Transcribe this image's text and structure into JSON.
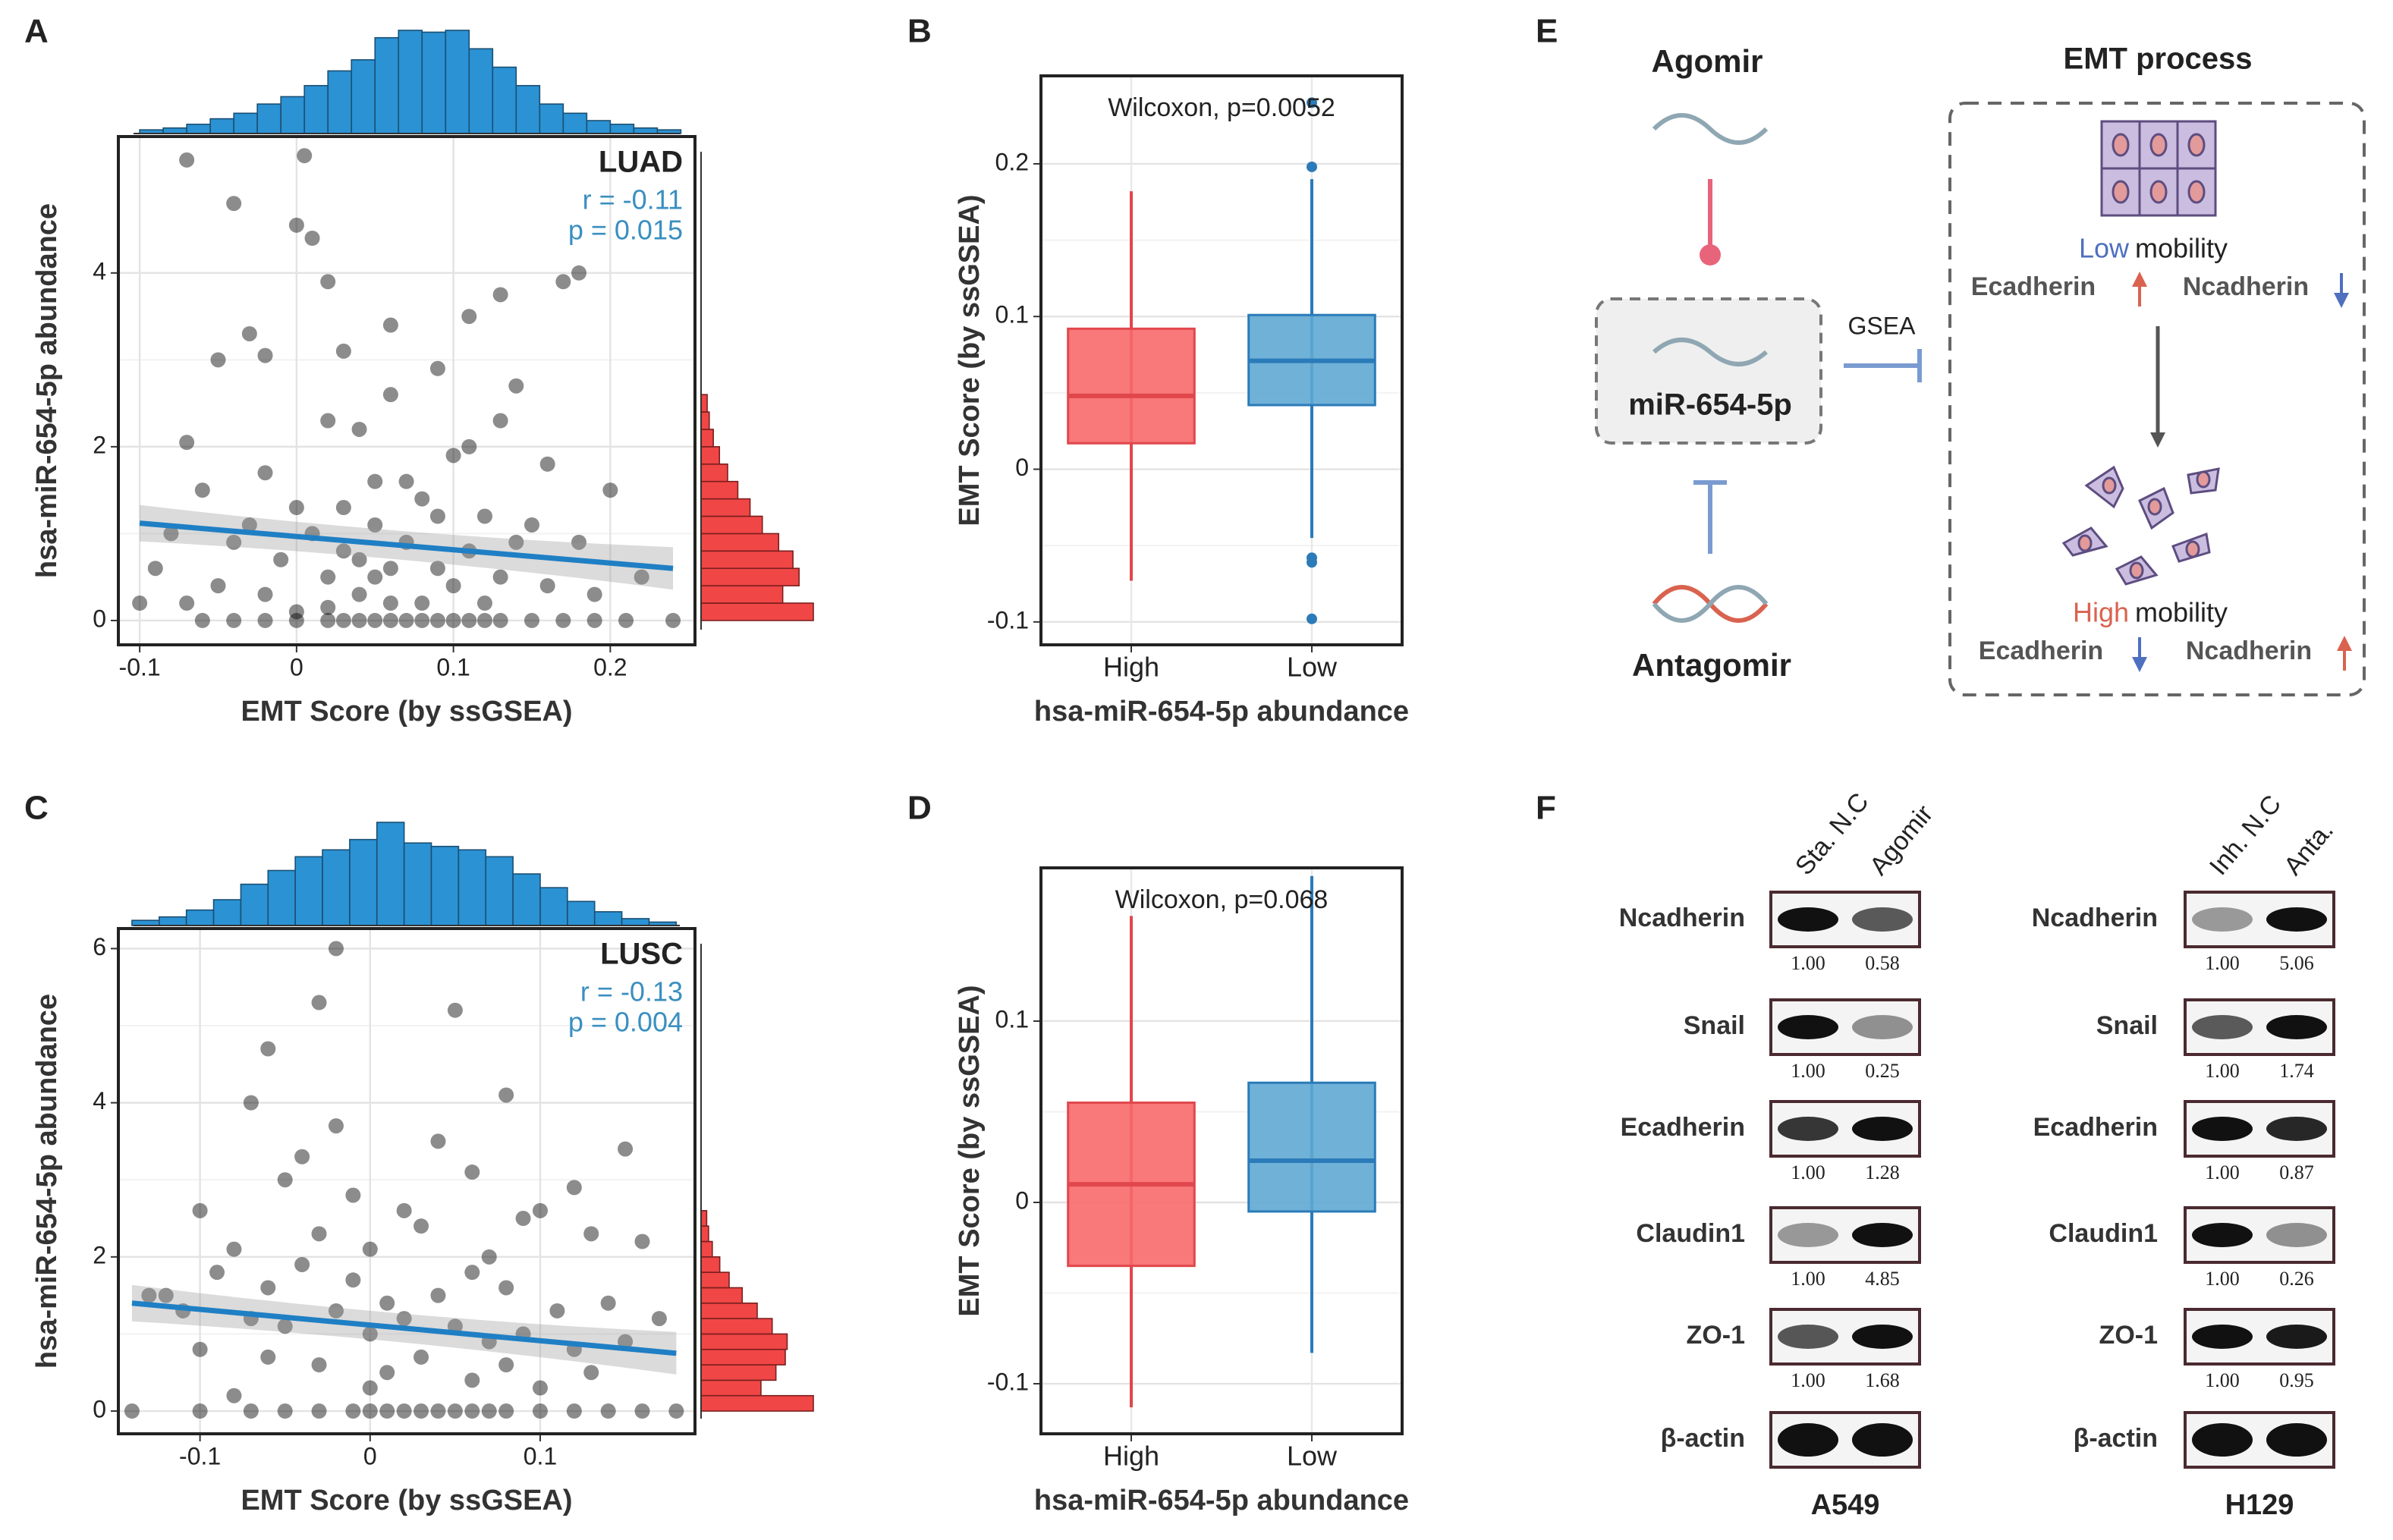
{
  "chart_data": [
    {
      "type": "scatter",
      "panel": "A",
      "xlabel": "EMT Score (by ssGSEA)",
      "ylabel": "hsa-miR-654-5p abundance",
      "label": "LUAD",
      "r": "r = -0.11",
      "p": "p = 0.015",
      "xlim": [
        -0.1136,
        0.254
      ],
      "xticks": [
        -0.1,
        0,
        0.1,
        0.2
      ],
      "ylim": [
        -0.28,
        5.57
      ],
      "yticks": [
        0,
        2,
        4
      ],
      "point_color": "#000000",
      "trend_color": "#1f7fc4",
      "annotation_color": "#3a8fc0",
      "x": [
        -0.07,
        0.005,
        -0.04,
        0.01,
        0.0,
        0.18,
        0.17,
        0.02,
        0.13,
        -0.03,
        0.06,
        0.11,
        -0.02,
        -0.05,
        0.03,
        0.09,
        0.14,
        0.06,
        -0.07,
        0.02,
        0.11,
        0.13,
        0.04,
        0.16,
        0.2,
        -0.06,
        -0.02,
        0.0,
        0.05,
        0.08,
        0.1,
        0.12,
        0.15,
        0.18,
        0.22,
        -0.09,
        -0.08,
        -0.04,
        -0.01,
        0.01,
        0.03,
        0.05,
        0.07,
        0.09,
        0.11,
        0.13,
        0.16,
        0.19,
        -0.05,
        -0.02,
        0.02,
        0.04,
        0.06,
        0.08,
        0.1,
        0.12,
        0.14,
        0.0,
        -0.07,
        0.24,
        -0.1,
        0.03,
        0.07,
        0.09,
        -0.03,
        0.05,
        0.06,
        0.04,
        0.02,
        -0.06,
        -0.04,
        -0.02,
        0.0,
        0.02,
        0.03,
        0.04,
        0.05,
        0.06,
        0.07,
        0.08,
        0.09,
        0.1,
        0.11,
        0.12,
        0.13,
        0.15,
        0.17,
        0.19,
        0.21
      ],
      "y": [
        5.3,
        5.35,
        4.8,
        4.4,
        4.55,
        4.0,
        3.9,
        3.9,
        3.75,
        3.3,
        3.4,
        3.5,
        3.05,
        3.0,
        3.1,
        2.9,
        2.7,
        2.6,
        2.05,
        2.3,
        2.0,
        2.3,
        2.2,
        1.8,
        1.5,
        1.5,
        1.7,
        1.3,
        1.6,
        1.4,
        1.9,
        1.2,
        1.1,
        0.9,
        0.5,
        0.6,
        1.0,
        0.9,
        0.7,
        1.0,
        0.8,
        1.1,
        0.9,
        0.6,
        0.8,
        0.5,
        0.4,
        0.3,
        0.4,
        0.3,
        0.5,
        0.3,
        0.6,
        0.2,
        0.4,
        0.2,
        0.9,
        0.1,
        0.2,
        0.0,
        0.2,
        1.3,
        1.6,
        1.2,
        1.1,
        0.5,
        0.2,
        0.7,
        0.15,
        0,
        0,
        0,
        0,
        0,
        0,
        0,
        0,
        0,
        0,
        0,
        0,
        0,
        0,
        0,
        0,
        0,
        0,
        0,
        0
      ],
      "trend": {
        "x": [
          -0.1,
          0.24
        ],
        "y": [
          1.12,
          0.6
        ]
      },
      "hist_x": {
        "color": "#2b92d4",
        "bins": [
          -0.1,
          -0.085,
          -0.07,
          -0.055,
          -0.04,
          -0.025,
          -0.01,
          0.005,
          0.02,
          0.035,
          0.05,
          0.065,
          0.08,
          0.095,
          0.11,
          0.125,
          0.14,
          0.155,
          0.17,
          0.185,
          0.2,
          0.215,
          0.23,
          0.245
        ],
        "counts": [
          2,
          3,
          5,
          8,
          11,
          16,
          20,
          26,
          34,
          40,
          52,
          56,
          55,
          56,
          46,
          36,
          26,
          16,
          11,
          7,
          5,
          3,
          2
        ]
      },
      "hist_y": {
        "color": "#f04646",
        "bins": [
          0,
          0.2,
          0.4,
          0.6,
          0.8,
          1.0,
          1.2,
          1.4,
          1.6,
          1.8,
          2.0,
          2.2,
          2.4,
          2.6
        ],
        "counts": [
          55,
          40,
          48,
          45,
          38,
          30,
          24,
          18,
          13,
          9,
          6,
          4,
          3
        ]
      }
    },
    {
      "type": "box",
      "panel": "B",
      "annotation": "Wilcoxon, p=0.0052",
      "xlabel": "hsa-miR-654-5p abundance",
      "ylabel": "EMT Score (by ssGSEA)",
      "categories": [
        "High",
        "Low"
      ],
      "ylim": [
        -0.115,
        0.2576
      ],
      "yticks": [
        -0.1,
        0,
        0.1,
        0.2
      ],
      "boxes": [
        {
          "min": -0.073,
          "q1": 0.017,
          "median": 0.048,
          "q3": 0.092,
          "max": 0.182,
          "outliers": [],
          "color": "#f8696b",
          "line_color": "#e0474c"
        },
        {
          "min": -0.045,
          "q1": 0.042,
          "median": 0.071,
          "q3": 0.101,
          "max": 0.19,
          "outliers": [
            0.198,
            0.24,
            -0.058,
            -0.061,
            -0.098
          ],
          "color": "#5fa8d3",
          "line_color": "#2b7bb9"
        }
      ]
    },
    {
      "type": "scatter",
      "panel": "C",
      "xlabel": "EMT Score (by ssGSEA)",
      "ylabel": "hsa-miR-654-5p abundance",
      "label": "LUSC",
      "r": "r = -0.13",
      "p": "p = 0.004",
      "xlim": [
        -0.148,
        0.191
      ],
      "xticks": [
        -0.1,
        0,
        0.1
      ],
      "ylim": [
        -0.295,
        6.26
      ],
      "yticks": [
        0,
        2,
        4,
        6
      ],
      "point_color": "#000000",
      "trend_color": "#1f7fc4",
      "annotation_color": "#3a8fc0",
      "x": [
        -0.02,
        -0.03,
        0.05,
        0.15,
        -0.07,
        -0.06,
        0.08,
        -0.04,
        -0.02,
        0.04,
        -0.1,
        -0.05,
        -0.01,
        0.02,
        0.06,
        0.09,
        0.12,
        0.16,
        -0.08,
        -0.03,
        0.0,
        0.03,
        0.07,
        0.1,
        0.13,
        -0.12,
        -0.09,
        -0.06,
        -0.04,
        -0.01,
        0.01,
        0.04,
        0.06,
        0.08,
        0.11,
        0.14,
        0.17,
        -0.13,
        -0.11,
        -0.07,
        -0.05,
        -0.02,
        0.0,
        0.02,
        0.05,
        0.07,
        0.09,
        0.12,
        0.15,
        -0.1,
        -0.06,
        -0.03,
        0.01,
        0.03,
        0.06,
        0.08,
        0.1,
        0.13,
        -0.08,
        0.0,
        -0.14,
        -0.1,
        -0.07,
        -0.05,
        -0.03,
        -0.01,
        0.0,
        0.01,
        0.02,
        0.03,
        0.04,
        0.05,
        0.06,
        0.07,
        0.08,
        0.1,
        0.12,
        0.14,
        0.16,
        0.18
      ],
      "y": [
        6.0,
        5.3,
        5.2,
        3.4,
        4.0,
        4.7,
        4.1,
        3.3,
        3.7,
        3.5,
        2.6,
        3.0,
        2.8,
        2.6,
        3.1,
        2.5,
        2.9,
        2.2,
        2.1,
        2.3,
        2.1,
        2.4,
        2.0,
        2.6,
        2.3,
        1.5,
        1.8,
        1.6,
        1.9,
        1.7,
        1.4,
        1.5,
        1.8,
        1.6,
        1.3,
        1.4,
        1.2,
        1.5,
        1.3,
        1.2,
        1.1,
        1.3,
        1.0,
        1.2,
        1.1,
        0.9,
        1.0,
        0.8,
        0.9,
        0.8,
        0.7,
        0.6,
        0.5,
        0.7,
        0.4,
        0.6,
        0.3,
        0.5,
        0.2,
        0.3,
        0,
        0,
        0,
        0,
        0,
        0,
        0,
        0,
        0,
        0,
        0,
        0,
        0,
        0,
        0,
        0,
        0,
        0,
        0,
        0
      ],
      "trend": {
        "x": [
          -0.14,
          0.18
        ],
        "y": [
          1.4,
          0.75
        ]
      },
      "hist_x": {
        "color": "#2b92d4",
        "bins": [
          -0.14,
          -0.124,
          -0.108,
          -0.092,
          -0.076,
          -0.06,
          -0.044,
          -0.028,
          -0.012,
          0.004,
          0.02,
          0.036,
          0.052,
          0.068,
          0.084,
          0.1,
          0.116,
          0.132,
          0.148,
          0.164,
          0.18
        ],
        "counts": [
          3,
          5,
          9,
          15,
          24,
          32,
          40,
          44,
          50,
          60,
          48,
          46,
          44,
          40,
          30,
          22,
          14,
          8,
          4,
          2
        ]
      },
      "hist_y": {
        "color": "#f04646",
        "bins": [
          0,
          0.2,
          0.4,
          0.6,
          0.8,
          1.0,
          1.2,
          1.4,
          1.6,
          1.8,
          2.0,
          2.2,
          2.4,
          2.6
        ],
        "counts": [
          60,
          32,
          40,
          45,
          46,
          38,
          30,
          22,
          15,
          10,
          6,
          4,
          3
        ]
      }
    },
    {
      "type": "box",
      "panel": "D",
      "annotation": "Wilcoxon, p=0.068",
      "xlabel": "hsa-miR-654-5p abundance",
      "ylabel": "EMT Score (by ssGSEA)",
      "categories": [
        "High",
        "Low"
      ],
      "ylim": [
        -0.1276,
        0.1845
      ],
      "yticks": [
        -0.1,
        0,
        0.1
      ],
      "boxes": [
        {
          "min": -0.113,
          "q1": -0.035,
          "median": 0.01,
          "q3": 0.055,
          "max": 0.158,
          "outliers": [],
          "color": "#f8696b",
          "line_color": "#e0474c"
        },
        {
          "min": -0.083,
          "q1": -0.005,
          "median": 0.023,
          "q3": 0.066,
          "max": 0.18,
          "outliers": [],
          "color": "#5fa8d3",
          "line_color": "#2b7bb9"
        }
      ]
    }
  ],
  "diagram": {
    "panel": "E",
    "agomir": "Agomir",
    "mirna": "miR-654-5p",
    "antagomir": "Antagomir",
    "gsea": "GSEA",
    "emt_title": "EMT process",
    "low": "Low",
    "low_rest": "mobility",
    "high": "High",
    "high_rest": "mobility",
    "top_left": "Ecadherin",
    "top_right": "Ncadherin",
    "bottom_left": "Ecadherin",
    "bottom_right": "Ncadherin"
  },
  "blot": {
    "panel": "F",
    "groups": [
      {
        "cell_line": "A549",
        "lanes": [
          "Sta. N.C",
          "Agomir"
        ],
        "rows": [
          {
            "protein": "Ncadherin",
            "quant": [
              "1.00",
              "0.58"
            ]
          },
          {
            "protein": "Snail",
            "quant": [
              "1.00",
              "0.25"
            ]
          },
          {
            "protein": "Ecadherin",
            "quant": [
              "1.00",
              "1.28"
            ]
          },
          {
            "protein": "Claudin1",
            "quant": [
              "1.00",
              "4.85"
            ]
          },
          {
            "protein": "ZO-1",
            "quant": [
              "1.00",
              "1.68"
            ]
          },
          {
            "protein": "β-actin"
          }
        ]
      },
      {
        "cell_line": "H129",
        "lanes": [
          "Inh. N.C",
          "Anta."
        ],
        "rows": [
          {
            "protein": "Ncadherin",
            "quant": [
              "1.00",
              "5.06"
            ]
          },
          {
            "protein": "Snail",
            "quant": [
              "1.00",
              "1.74"
            ]
          },
          {
            "protein": "Ecadherin",
            "quant": [
              "1.00",
              "0.87"
            ]
          },
          {
            "protein": "Claudin1",
            "quant": [
              "1.00",
              "0.26"
            ]
          },
          {
            "protein": "ZO-1",
            "quant": [
              "1.00",
              "0.95"
            ]
          },
          {
            "protein": "β-actin"
          }
        ]
      }
    ]
  }
}
